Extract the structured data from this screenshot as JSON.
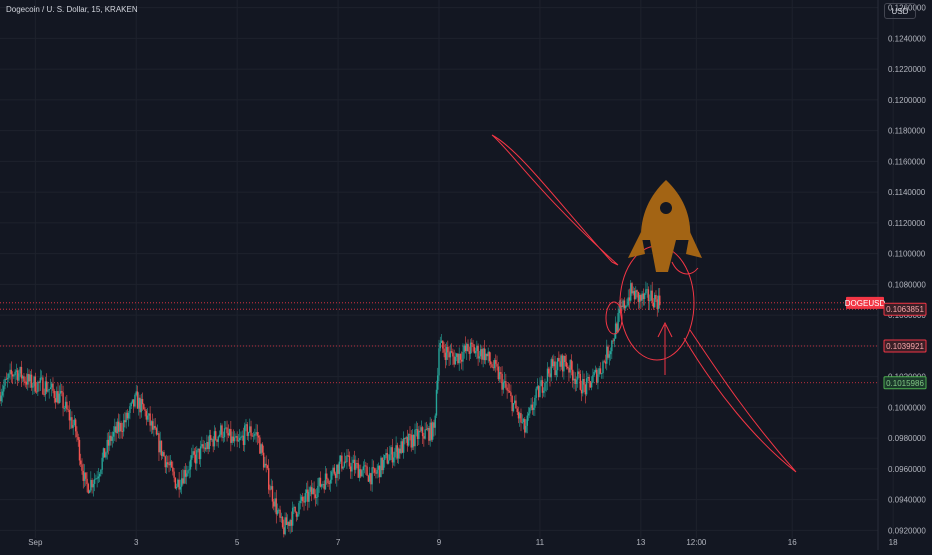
{
  "header": {
    "symbol_title": "Dogecoin / U. S. Dollar, 15, KRAKEN",
    "currency_button": "USD"
  },
  "colors": {
    "background": "#131722",
    "grid": "#1e222d",
    "up_candle": "#26a69a",
    "down_candle": "#ef5350",
    "drawing": "#f23645",
    "rocket": "#a36414",
    "axis_text": "#b2b5be"
  },
  "price_labels": [
    {
      "text": "DOGEUSD",
      "color": "#f23645"
    },
    {
      "text": "0.1063851",
      "color": "#f7a5a8"
    },
    {
      "text": "0.1039921",
      "color": "#f7a5a8"
    },
    {
      "text": "0.1015986",
      "color": "#4caf50"
    }
  ],
  "chart_data": {
    "type": "candlestick",
    "y_axis": {
      "ticks": [
        "0.1260000",
        "0.1240000",
        "0.1220000",
        "0.1200000",
        "0.1180000",
        "0.1160000",
        "0.1140000",
        "0.1120000",
        "0.1100000",
        "0.1080000",
        "0.1060000",
        "0.1040000",
        "0.1020000",
        "0.1000000",
        "0.0980000",
        "0.0960000",
        "0.0940000",
        "0.0920000"
      ],
      "range": [
        0.0915,
        0.1265
      ]
    },
    "x_axis": {
      "ticks": [
        "Sep",
        "3",
        "5",
        "7",
        "9",
        "11",
        "13",
        "12:00",
        "16",
        "18"
      ],
      "range_days": [
        1,
        18.4
      ]
    },
    "horizontal_levels": [
      {
        "price": 0.1068,
        "style": "dotted",
        "color": "#f23645"
      },
      {
        "price": 0.1063851,
        "style": "dotted",
        "color": "#f23645"
      },
      {
        "price": 0.1039921,
        "style": "dotted",
        "color": "#f23645"
      },
      {
        "price": 0.1015986,
        "style": "dotted",
        "color": "#f23645"
      }
    ],
    "price_path": [
      [
        1.0,
        0.101
      ],
      [
        1.3,
        0.1024
      ],
      [
        1.6,
        0.1016
      ],
      [
        1.9,
        0.1014
      ],
      [
        2.2,
        0.1006
      ],
      [
        2.5,
        0.0985
      ],
      [
        2.7,
        0.0948
      ],
      [
        2.9,
        0.0955
      ],
      [
        3.2,
        0.098
      ],
      [
        3.5,
        0.0992
      ],
      [
        3.7,
        0.1005
      ],
      [
        3.9,
        0.0995
      ],
      [
        4.2,
        0.0972
      ],
      [
        4.5,
        0.095
      ],
      [
        4.8,
        0.0965
      ],
      [
        5.1,
        0.0975
      ],
      [
        5.4,
        0.0985
      ],
      [
        5.7,
        0.0975
      ],
      [
        5.9,
        0.0985
      ],
      [
        6.1,
        0.0982
      ],
      [
        6.3,
        0.0955
      ],
      [
        6.6,
        0.092
      ],
      [
        6.9,
        0.0935
      ],
      [
        7.2,
        0.0945
      ],
      [
        7.5,
        0.0955
      ],
      [
        7.8,
        0.0965
      ],
      [
        8.1,
        0.096
      ],
      [
        8.4,
        0.0955
      ],
      [
        8.7,
        0.0968
      ],
      [
        9.0,
        0.0975
      ],
      [
        9.3,
        0.0982
      ],
      [
        9.6,
        0.0985
      ],
      [
        9.7,
        0.104
      ],
      [
        10.0,
        0.1032
      ],
      [
        10.3,
        0.1038
      ],
      [
        10.6,
        0.1035
      ],
      [
        10.9,
        0.102
      ],
      [
        11.2,
        0.1
      ],
      [
        11.4,
        0.0985
      ],
      [
        11.6,
        0.1005
      ],
      [
        11.9,
        0.1025
      ],
      [
        12.2,
        0.103
      ],
      [
        12.4,
        0.102
      ],
      [
        12.6,
        0.1012
      ],
      [
        12.9,
        0.1025
      ],
      [
        13.1,
        0.104
      ],
      [
        13.3,
        0.1062
      ],
      [
        13.5,
        0.1075
      ],
      [
        13.7,
        0.107
      ],
      [
        13.9,
        0.1072
      ],
      [
        14.1,
        0.1068
      ]
    ]
  }
}
